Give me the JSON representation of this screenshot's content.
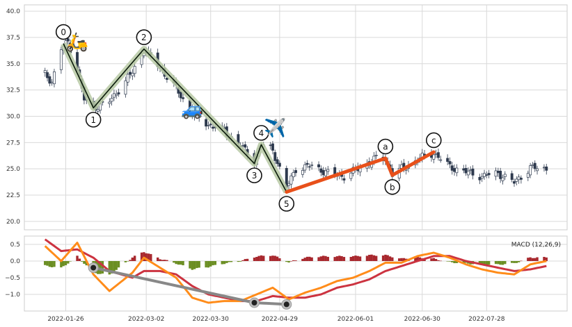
{
  "chart_data": {
    "type": "candlestick",
    "main": {
      "ylim": [
        19.2,
        40.6
      ],
      "yticks": [
        20.0,
        22.5,
        25.0,
        27.5,
        30.0,
        32.5,
        35.0,
        37.5,
        40.0
      ],
      "ytick_labels": [
        "20.0",
        "22.5",
        "25.0",
        "27.5",
        "30.0",
        "32.5",
        "35.0",
        "37.5",
        "40.0"
      ],
      "price_waypoints": [
        [
          "2022-01-17",
          34.0
        ],
        [
          "2022-01-20",
          33.3
        ],
        [
          "2022-01-24",
          36.4
        ],
        [
          "2022-01-27",
          37.1
        ],
        [
          "2022-01-31",
          34.5
        ],
        [
          "2022-02-03",
          31.6
        ],
        [
          "2022-02-07",
          30.8
        ],
        [
          "2022-02-14",
          31.4
        ],
        [
          "2022-02-24",
          34.2
        ],
        [
          "2022-03-01",
          36.4
        ],
        [
          "2022-03-08",
          34.6
        ],
        [
          "2022-03-15",
          32.6
        ],
        [
          "2022-03-22",
          30.3
        ],
        [
          "2022-03-29",
          29.2
        ],
        [
          "2022-04-05",
          28.6
        ],
        [
          "2022-04-12",
          27.2
        ],
        [
          "2022-04-18",
          25.8
        ],
        [
          "2022-04-21",
          27.3
        ],
        [
          "2022-04-26",
          26.8
        ],
        [
          "2022-05-02",
          23.2
        ],
        [
          "2022-05-06",
          25.0
        ],
        [
          "2022-05-13",
          25.3
        ],
        [
          "2022-05-20",
          24.6
        ],
        [
          "2022-05-27",
          24.3
        ],
        [
          "2022-06-03",
          25.1
        ],
        [
          "2022-06-10",
          26.0
        ],
        [
          "2022-06-14",
          25.9
        ],
        [
          "2022-06-17",
          24.5
        ],
        [
          "2022-06-22",
          25.1
        ],
        [
          "2022-06-29",
          26.0
        ],
        [
          "2022-07-05",
          26.5
        ],
        [
          "2022-07-12",
          25.2
        ],
        [
          "2022-07-19",
          24.7
        ],
        [
          "2022-07-26",
          24.3
        ],
        [
          "2022-08-02",
          24.6
        ],
        [
          "2022-08-09",
          23.7
        ],
        [
          "2022-08-16",
          25.1
        ],
        [
          "2022-08-23",
          25.0
        ]
      ],
      "wave": {
        "impulse_points": [
          {
            "label": "0",
            "date": "2022-01-25",
            "price": 36.9
          },
          {
            "label": "1",
            "date": "2022-02-07",
            "price": 30.8
          },
          {
            "label": "2",
            "date": "2022-03-01",
            "price": 36.4
          },
          {
            "label": "3",
            "date": "2022-04-18",
            "price": 25.5
          },
          {
            "label": "4",
            "date": "2022-04-21",
            "price": 27.3
          },
          {
            "label": "5",
            "date": "2022-05-02",
            "price": 22.8
          }
        ],
        "correction_points": [
          {
            "label": "a",
            "date": "2022-06-14",
            "price": 26.0
          },
          {
            "label": "b",
            "date": "2022-06-17",
            "price": 24.4
          },
          {
            "label": "c",
            "date": "2022-07-05",
            "price": 26.6
          }
        ],
        "icons": [
          {
            "name": "scooter-icon",
            "glyph": "🛵",
            "date": "2022-01-31",
            "price": 37.0
          },
          {
            "name": "car-icon",
            "glyph": "🚙",
            "date": "2022-03-22",
            "price": 30.6
          },
          {
            "name": "airplane-icon",
            "glyph": "✈️",
            "date": "2022-04-27",
            "price": 28.8
          }
        ]
      }
    },
    "macd": {
      "label": "MACD (12,26,9)",
      "ylim": [
        -1.5,
        0.75
      ],
      "yticks": [
        -1.0,
        -0.5,
        0.0,
        0.5
      ],
      "ytick_labels": [
        "−1.0",
        "−0.5",
        "0.0",
        "0.5"
      ],
      "macd_waypoints": [
        [
          "2022-01-17",
          0.45
        ],
        [
          "2022-01-24",
          0.0
        ],
        [
          "2022-01-31",
          0.55
        ],
        [
          "2022-02-07",
          -0.4
        ],
        [
          "2022-02-14",
          -0.9
        ],
        [
          "2022-02-24",
          -0.35
        ],
        [
          "2022-03-01",
          0.1
        ],
        [
          "2022-03-08",
          -0.2
        ],
        [
          "2022-03-15",
          -0.5
        ],
        [
          "2022-03-22",
          -1.1
        ],
        [
          "2022-03-29",
          -1.25
        ],
        [
          "2022-04-05",
          -1.2
        ],
        [
          "2022-04-12",
          -1.2
        ],
        [
          "2022-04-19",
          -1.0
        ],
        [
          "2022-04-26",
          -0.8
        ],
        [
          "2022-05-03",
          -1.15
        ],
        [
          "2022-05-10",
          -0.95
        ],
        [
          "2022-05-17",
          -0.8
        ],
        [
          "2022-05-24",
          -0.6
        ],
        [
          "2022-05-31",
          -0.5
        ],
        [
          "2022-06-07",
          -0.3
        ],
        [
          "2022-06-14",
          -0.05
        ],
        [
          "2022-06-21",
          -0.05
        ],
        [
          "2022-06-28",
          0.15
        ],
        [
          "2022-07-05",
          0.25
        ],
        [
          "2022-07-12",
          0.1
        ],
        [
          "2022-07-19",
          -0.1
        ],
        [
          "2022-07-26",
          -0.25
        ],
        [
          "2022-08-02",
          -0.35
        ],
        [
          "2022-08-09",
          -0.4
        ],
        [
          "2022-08-16",
          -0.1
        ],
        [
          "2022-08-23",
          0.0
        ]
      ],
      "signal_waypoints": [
        [
          "2022-01-17",
          0.65
        ],
        [
          "2022-01-24",
          0.3
        ],
        [
          "2022-01-31",
          0.35
        ],
        [
          "2022-02-07",
          0.1
        ],
        [
          "2022-02-14",
          -0.3
        ],
        [
          "2022-02-24",
          -0.5
        ],
        [
          "2022-03-01",
          -0.3
        ],
        [
          "2022-03-08",
          -0.3
        ],
        [
          "2022-03-15",
          -0.4
        ],
        [
          "2022-03-22",
          -0.75
        ],
        [
          "2022-03-29",
          -1.0
        ],
        [
          "2022-04-05",
          -1.1
        ],
        [
          "2022-04-12",
          -1.2
        ],
        [
          "2022-04-19",
          -1.2
        ],
        [
          "2022-04-26",
          -1.05
        ],
        [
          "2022-05-03",
          -1.1
        ],
        [
          "2022-05-10",
          -1.1
        ],
        [
          "2022-05-17",
          -1.0
        ],
        [
          "2022-05-24",
          -0.8
        ],
        [
          "2022-05-31",
          -0.7
        ],
        [
          "2022-06-07",
          -0.55
        ],
        [
          "2022-06-14",
          -0.3
        ],
        [
          "2022-06-21",
          -0.15
        ],
        [
          "2022-06-28",
          0.0
        ],
        [
          "2022-07-05",
          0.15
        ],
        [
          "2022-07-12",
          0.15
        ],
        [
          "2022-07-19",
          0.0
        ],
        [
          "2022-07-26",
          -0.1
        ],
        [
          "2022-08-02",
          -0.2
        ],
        [
          "2022-08-09",
          -0.3
        ],
        [
          "2022-08-16",
          -0.25
        ],
        [
          "2022-08-23",
          -0.15
        ]
      ],
      "divergence_points": [
        {
          "date": "2022-02-07",
          "value": -0.2
        },
        {
          "date": "2022-04-18",
          "value": -1.25
        },
        {
          "date": "2022-05-02",
          "value": -1.3
        }
      ]
    },
    "x_axis": {
      "range": [
        "2022-01-08",
        "2022-09-01"
      ],
      "ticks": [
        "2022-01-26",
        "2022-03-02",
        "2022-03-30",
        "2022-04-29",
        "2022-06-01",
        "2022-06-30",
        "2022-07-28"
      ]
    },
    "colors": {
      "candle_body": "#2e3a4e",
      "impulse_band": "#b7c9a4",
      "impulse_line": "#0a1a0a",
      "correction_line": "#e8501a",
      "macd_line": "#ff8c1a",
      "signal_line": "#cc3340",
      "hist_positive": "#a8282e",
      "hist_negative": "#6b8e23",
      "divergence": "#888888",
      "grid": "#d9d9d9"
    }
  }
}
